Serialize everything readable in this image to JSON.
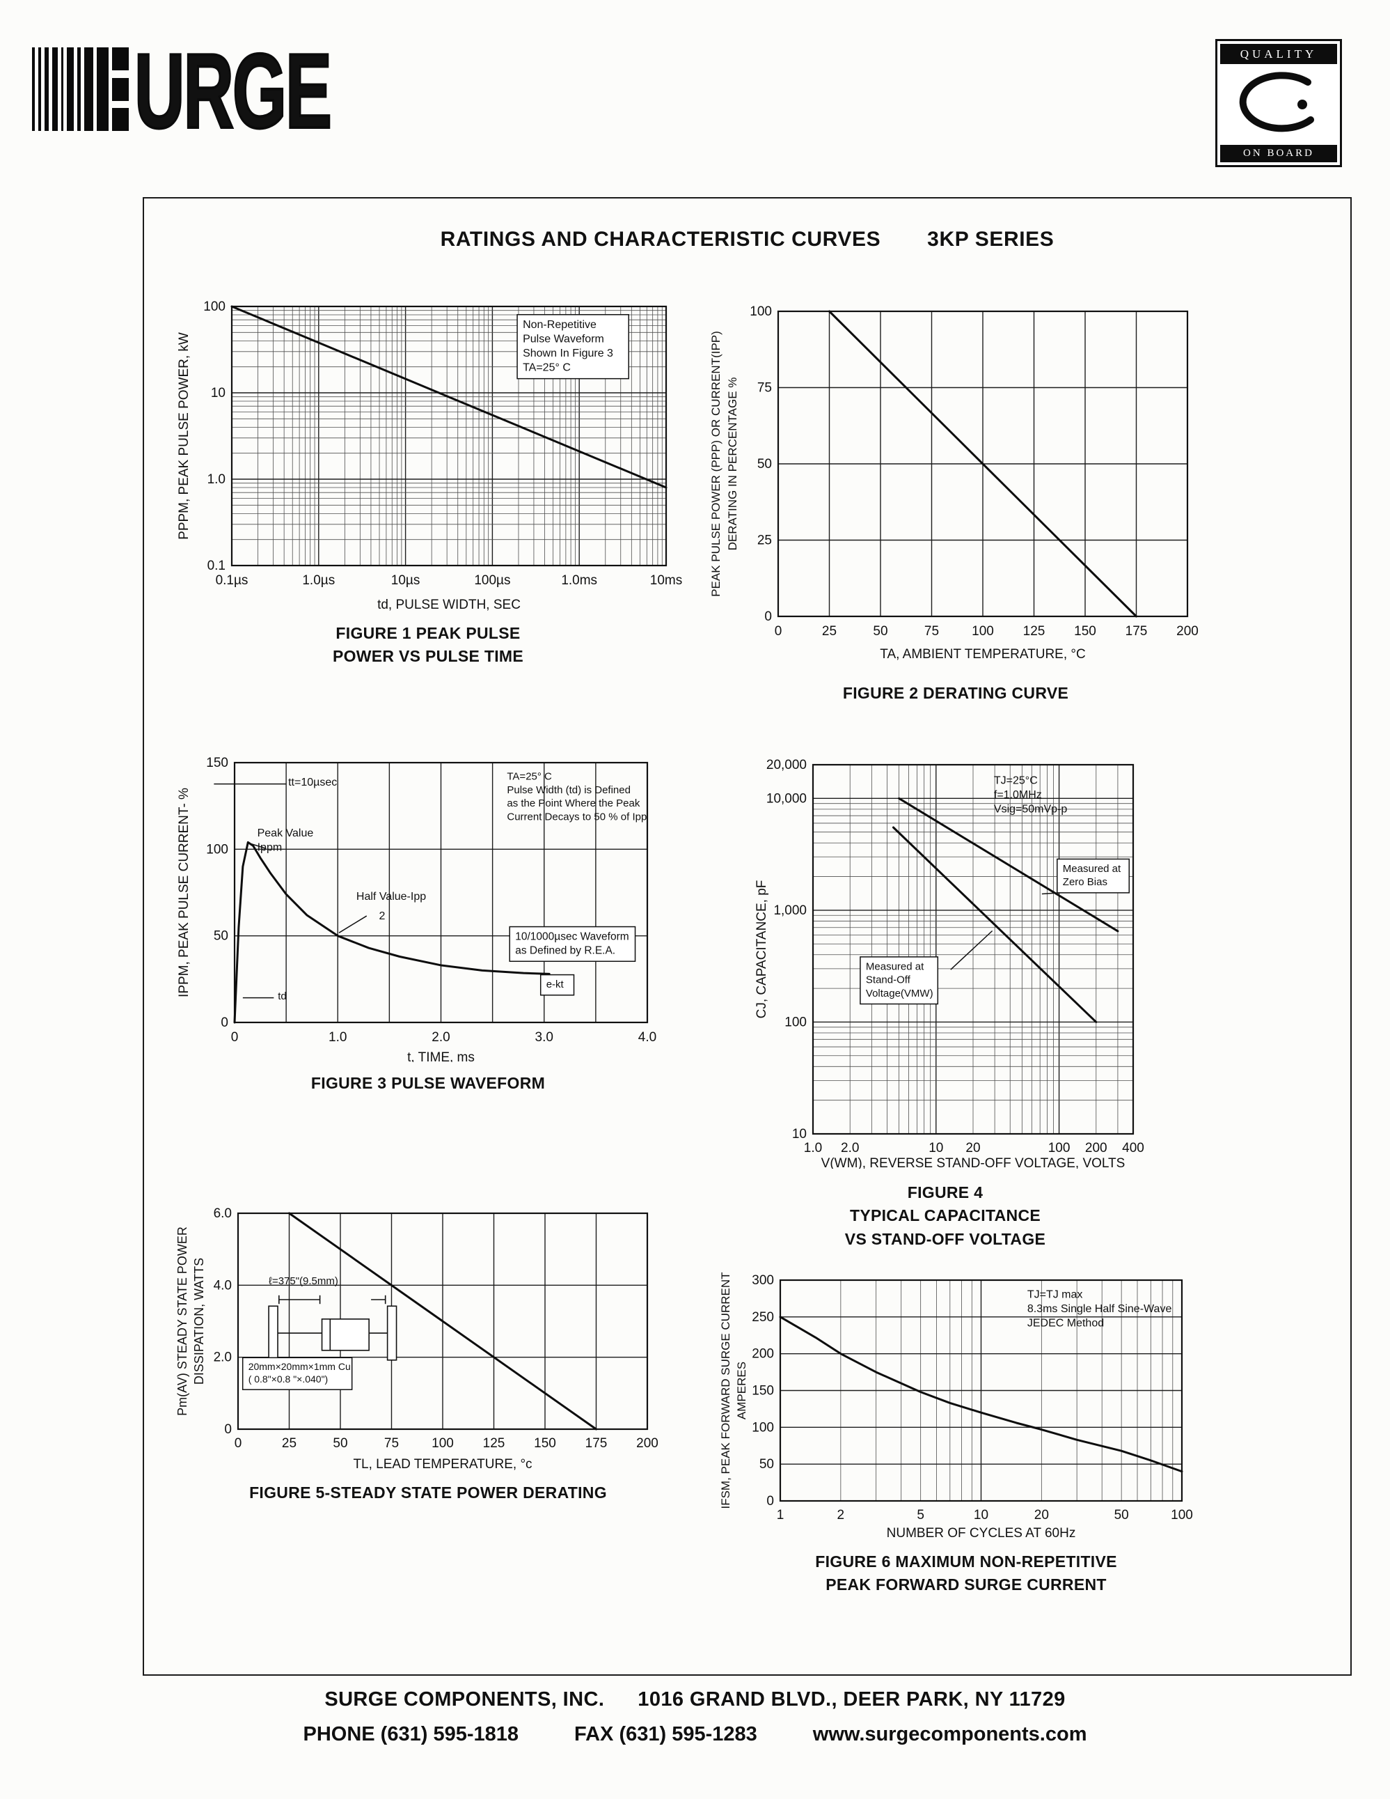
{
  "page": {
    "logo_text": "URGE",
    "badge": {
      "top": "QUALITY",
      "bottom": "ON BOARD"
    },
    "title_left": "RATINGS AND CHARACTERISTIC CURVES",
    "title_right": "3KP SERIES",
    "footer": {
      "company": "SURGE COMPONENTS, INC.",
      "address": "1016 GRAND BLVD., DEER PARK, NY  11729",
      "phone": "PHONE (631) 595-1818",
      "fax": "FAX  (631) 595-1283",
      "website": "www.surgecomponents.com"
    }
  },
  "chart_data": [
    {
      "id": "figure-1",
      "type": "line",
      "title": "FIGURE 1 PEAK PULSE POWER VS PULSE TIME",
      "caption_lines": [
        "FIGURE 1 PEAK PULSE",
        "POWER VS PULSE TIME"
      ],
      "xlabel": "td, PULSE WIDTH, SEC",
      "ylabel_lines": [
        "PPPM, PEAK PULSE POWER, kW"
      ],
      "x": {
        "scale": "log",
        "min": 1e-07,
        "max": 0.01,
        "ticks": [
          {
            "v": 1e-07,
            "label": "0.1µs"
          },
          {
            "v": 1e-06,
            "label": "1.0µs"
          },
          {
            "v": 1e-05,
            "label": "10µs"
          },
          {
            "v": 0.0001,
            "label": "100µs"
          },
          {
            "v": 0.001,
            "label": "1.0ms"
          },
          {
            "v": 0.01,
            "label": "10ms"
          }
        ]
      },
      "y": {
        "scale": "log",
        "min": 0.1,
        "max": 100,
        "ticks": [
          {
            "v": 100,
            "label": "100"
          },
          {
            "v": 10,
            "label": "10"
          },
          {
            "v": 1,
            "label": "1.0"
          },
          {
            "v": 0.1,
            "label": "0.1"
          }
        ]
      },
      "series": [
        {
          "name": "peak-pulse-power",
          "points": [
            [
              1e-07,
              100
            ],
            [
              0.01,
              0.8
            ]
          ]
        }
      ],
      "annotations": [
        {
          "fx": 0.67,
          "fy": 0.045,
          "fs": 16,
          "box": true,
          "lines": [
            "Non-Repetitive",
            "Pulse Waveform",
            "Shown In Figure 3",
            "TA=25° C"
          ]
        }
      ]
    },
    {
      "id": "figure-2",
      "type": "line",
      "title": "FIGURE 2 DERATING CURVE",
      "caption_lines": [
        "FIGURE 2 DERATING CURVE"
      ],
      "xlabel": "TA, AMBIENT   TEMPERATURE, °C",
      "ylabel_lines": [
        "PEAK  PULSE  POWER (PPP) OR  CURRENT(IPP)",
        "DERATING IN PERCENTAGE %"
      ],
      "x": {
        "scale": "linear",
        "min": 0,
        "max": 200,
        "grid_step": 25,
        "ticks": [
          {
            "v": 0,
            "label": "0"
          },
          {
            "v": 25,
            "label": "25"
          },
          {
            "v": 50,
            "label": "50"
          },
          {
            "v": 75,
            "label": "75"
          },
          {
            "v": 100,
            "label": "100"
          },
          {
            "v": 125,
            "label": "125"
          },
          {
            "v": 150,
            "label": "150"
          },
          {
            "v": 175,
            "label": "175"
          },
          {
            "v": 200,
            "label": "200"
          }
        ]
      },
      "y": {
        "scale": "linear",
        "min": 0,
        "max": 100,
        "grid_step": 25,
        "ticks": [
          {
            "v": 100,
            "label": "100"
          },
          {
            "v": 75,
            "label": "75"
          },
          {
            "v": 50,
            "label": "50"
          },
          {
            "v": 25,
            "label": "25"
          },
          {
            "v": 0,
            "label": "0"
          }
        ]
      },
      "series": [
        {
          "name": "derating",
          "points": [
            [
              25,
              100
            ],
            [
              175,
              0
            ]
          ]
        }
      ],
      "annotations": []
    },
    {
      "id": "figure-3",
      "type": "line",
      "title": "FIGURE 3 PULSE WAVEFORM",
      "caption_lines": [
        "FIGURE 3  PULSE WAVEFORM"
      ],
      "xlabel": "t, TIME, ms",
      "ylabel_lines": [
        "IPPM, PEAK  PULSE  CURRENT- %"
      ],
      "x": {
        "scale": "linear",
        "min": 0,
        "max": 4,
        "grid_step": 0.5,
        "ticks": [
          {
            "v": 0,
            "label": "0"
          },
          {
            "v": 1,
            "label": "1.0"
          },
          {
            "v": 2,
            "label": "2.0"
          },
          {
            "v": 3,
            "label": "3.0"
          },
          {
            "v": 4,
            "label": "4.0"
          }
        ]
      },
      "y": {
        "scale": "linear",
        "min": 0,
        "max": 150,
        "grid_step": 50,
        "ticks": [
          {
            "v": 150,
            "label": "150"
          },
          {
            "v": 100,
            "label": "100"
          },
          {
            "v": 50,
            "label": "50"
          },
          {
            "v": 0,
            "label": "0"
          }
        ]
      },
      "series": [
        {
          "name": "pulse-waveform",
          "points": [
            [
              0,
              0
            ],
            [
              0.04,
              55
            ],
            [
              0.08,
              90
            ],
            [
              0.13,
              104
            ],
            [
              0.18,
              102
            ],
            [
              0.25,
              95
            ],
            [
              0.35,
              86
            ],
            [
              0.5,
              74
            ],
            [
              0.7,
              62
            ],
            [
              1.0,
              50
            ],
            [
              1.3,
              43
            ],
            [
              1.6,
              38
            ],
            [
              2.0,
              33
            ],
            [
              2.4,
              30
            ],
            [
              2.8,
              28.5
            ],
            [
              3.05,
              28
            ]
          ]
        }
      ],
      "annotations": [
        {
          "fx": 0.13,
          "fy": 0.05,
          "fs": 16,
          "lines": [
            "tt=10µsec"
          ],
          "leader": [
            -0.05,
            0.082,
            0.125,
            0.082
          ]
        },
        {
          "fx": 0.055,
          "fy": 0.245,
          "fs": 16,
          "lines": [
            "Peak Value",
            "Ippm"
          ],
          "leader": [
            0.075,
            0.33,
            0.035,
            0.31
          ]
        },
        {
          "fx": 0.295,
          "fy": 0.49,
          "fs": 16,
          "lines": [
            "Half Value-Ipp"
          ],
          "leader": [
            0.32,
            0.59,
            0.253,
            0.655
          ]
        },
        {
          "fx": 0.35,
          "fy": 0.565,
          "fs": 16,
          "lines": [
            "2"
          ]
        },
        {
          "fx": 0.66,
          "fy": 0.03,
          "fs": 15,
          "lines": [
            "TA=25° C",
            "Pulse Width (td) is Defined",
            "as the Point Where the Peak",
            "Current Decays to 50 % of Ipp"
          ]
        },
        {
          "fx": 0.68,
          "fy": 0.645,
          "fs": 15.5,
          "box": true,
          "lines": [
            "10/1000µsec Waveform",
            "as Defined by R.E.A."
          ]
        },
        {
          "fx": 0.755,
          "fy": 0.83,
          "fs": 15,
          "box": true,
          "lines": [
            "e-kt"
          ]
        },
        {
          "fx": 0.105,
          "fy": 0.875,
          "fs": 15,
          "lines": [
            "td"
          ],
          "leader": [
            0.02,
            0.905,
            0.095,
            0.905
          ]
        }
      ]
    },
    {
      "id": "figure-4",
      "type": "line",
      "title": "FIGURE 4 TYPICAL CAPACITANCE VS STAND-OFF VOLTAGE",
      "caption_lines": [
        "FIGURE 4",
        "TYPICAL CAPACITANCE",
        "VS STAND-OFF VOLTAGE"
      ],
      "xlabel": "V(WM), REVERSE  STAND-OFF  VOLTAGE, VOLTS",
      "ylabel_lines": [
        "CJ, CAPACITANCE, pF"
      ],
      "x": {
        "scale": "log",
        "min": 1,
        "max": 400,
        "ticks": [
          {
            "v": 1,
            "label": "1.0"
          },
          {
            "v": 2,
            "label": "2.0"
          },
          {
            "v": 10,
            "label": "10"
          },
          {
            "v": 20,
            "label": "20"
          },
          {
            "v": 100,
            "label": "100"
          },
          {
            "v": 200,
            "label": "200"
          },
          {
            "v": 400,
            "label": "400"
          }
        ]
      },
      "y": {
        "scale": "log",
        "min": 10,
        "max": 20000,
        "ticks": [
          {
            "v": 20000,
            "label": "20,000"
          },
          {
            "v": 10000,
            "label": "10,000"
          },
          {
            "v": 1000,
            "label": "1,000"
          },
          {
            "v": 100,
            "label": "100"
          },
          {
            "v": 10,
            "label": "10"
          }
        ]
      },
      "series": [
        {
          "name": "measured-at-zero-bias",
          "points": [
            [
              5,
              10000
            ],
            [
              300,
              650
            ]
          ]
        },
        {
          "name": "measured-at-stand-off-voltage",
          "points": [
            [
              4.5,
              5500
            ],
            [
              200,
              100
            ]
          ]
        }
      ],
      "annotations": [
        {
          "fx": 0.565,
          "fy": 0.025,
          "fs": 16,
          "lines": [
            "TJ=25°C",
            "f=1.0MHz",
            "Vsig=50mVp-p"
          ]
        },
        {
          "fx": 0.78,
          "fy": 0.265,
          "fs": 15,
          "box": true,
          "lines": [
            "Measured at",
            "Zero Bias"
          ],
          "leader": [
            0.8,
            0.345,
            0.715,
            0.35
          ]
        },
        {
          "fx": 0.165,
          "fy": 0.53,
          "fs": 15,
          "box": true,
          "lines": [
            "Measured at",
            "Stand-Off",
            "Voltage(VMW)"
          ],
          "leader": [
            0.43,
            0.555,
            0.56,
            0.45
          ]
        }
      ]
    },
    {
      "id": "figure-5",
      "type": "line",
      "title": "FIGURE 5-STEADY STATE POWER DERATING",
      "caption_lines": [
        "FIGURE 5-STEADY STATE POWER DERATING"
      ],
      "xlabel": "TL, LEAD  TEMPERATURE, °c",
      "ylabel_lines": [
        "Pm(AV) STEADY  STATE  POWER",
        "DISSIPATION, WATTS"
      ],
      "decoration": "lead-assembly",
      "x": {
        "scale": "linear",
        "min": 0,
        "max": 200,
        "grid_step": 25,
        "ticks": [
          {
            "v": 0,
            "label": "0"
          },
          {
            "v": 25,
            "label": "25"
          },
          {
            "v": 50,
            "label": "50"
          },
          {
            "v": 75,
            "label": "75"
          },
          {
            "v": 100,
            "label": "100"
          },
          {
            "v": 125,
            "label": "125"
          },
          {
            "v": 150,
            "label": "150"
          },
          {
            "v": 175,
            "label": "175"
          },
          {
            "v": 200,
            "label": "200"
          }
        ]
      },
      "y": {
        "scale": "linear",
        "min": 0,
        "max": 6,
        "grid_step": 2,
        "ticks": [
          {
            "v": 6,
            "label": "6.0"
          },
          {
            "v": 4,
            "label": "4.0"
          },
          {
            "v": 2,
            "label": "2.0"
          },
          {
            "v": 0,
            "label": "0"
          }
        ]
      },
      "series": [
        {
          "name": "steady-state-power",
          "points": [
            [
              25,
              6
            ],
            [
              175,
              0
            ]
          ]
        }
      ],
      "annotations": [
        {
          "fx": 0.075,
          "fy": 0.285,
          "fs": 15,
          "lines": [
            "ℓ=375\"(9.5mm)"
          ]
        },
        {
          "fx": 0.025,
          "fy": 0.685,
          "fs": 14,
          "box": true,
          "lines": [
            "20mm×20mm×1mm Cu",
            "( 0.8\"×0.8 \"×.040\")"
          ]
        }
      ]
    },
    {
      "id": "figure-6",
      "type": "line",
      "title": "FIGURE 6 MAXIMUM NON-REPETITIVE PEAK FORWARD SURGE CURRENT",
      "caption_lines": [
        "FIGURE 6  MAXIMUM NON-REPETITIVE",
        "PEAK FORWARD SURGE CURRENT"
      ],
      "xlabel": "NUMBER  OF  CYCLES  AT  60Hz",
      "ylabel_lines": [
        "IFSM, PEAK  FORWARD  SURGE  CURRENT",
        "AMPERES"
      ],
      "x": {
        "scale": "log",
        "min": 1,
        "max": 100,
        "ticks": [
          {
            "v": 1,
            "label": "1"
          },
          {
            "v": 2,
            "label": "2"
          },
          {
            "v": 5,
            "label": "5"
          },
          {
            "v": 10,
            "label": "10"
          },
          {
            "v": 20,
            "label": "20"
          },
          {
            "v": 50,
            "label": "50"
          },
          {
            "v": 100,
            "label": "100"
          }
        ]
      },
      "y": {
        "scale": "linear",
        "min": 0,
        "max": 300,
        "grid_step": 50,
        "ticks": [
          {
            "v": 300,
            "label": "300"
          },
          {
            "v": 250,
            "label": "250"
          },
          {
            "v": 200,
            "label": "200"
          },
          {
            "v": 150,
            "label": "150"
          },
          {
            "v": 100,
            "label": "100"
          },
          {
            "v": 50,
            "label": "50"
          },
          {
            "v": 0,
            "label": "0"
          }
        ]
      },
      "series": [
        {
          "name": "surge-current",
          "points": [
            [
              1,
              250
            ],
            [
              1.5,
              222
            ],
            [
              2,
              200
            ],
            [
              3,
              175
            ],
            [
              5,
              148
            ],
            [
              7,
              133
            ],
            [
              10,
              120
            ],
            [
              15,
              106
            ],
            [
              20,
              97
            ],
            [
              30,
              83
            ],
            [
              50,
              68
            ],
            [
              70,
              55
            ],
            [
              100,
              40
            ]
          ]
        }
      ],
      "annotations": [
        {
          "fx": 0.615,
          "fy": 0.035,
          "fs": 16,
          "lines": [
            "TJ=TJ max",
            "8.3ms Single Half Sine-Wave",
            "JEDEC Method"
          ]
        }
      ]
    }
  ]
}
